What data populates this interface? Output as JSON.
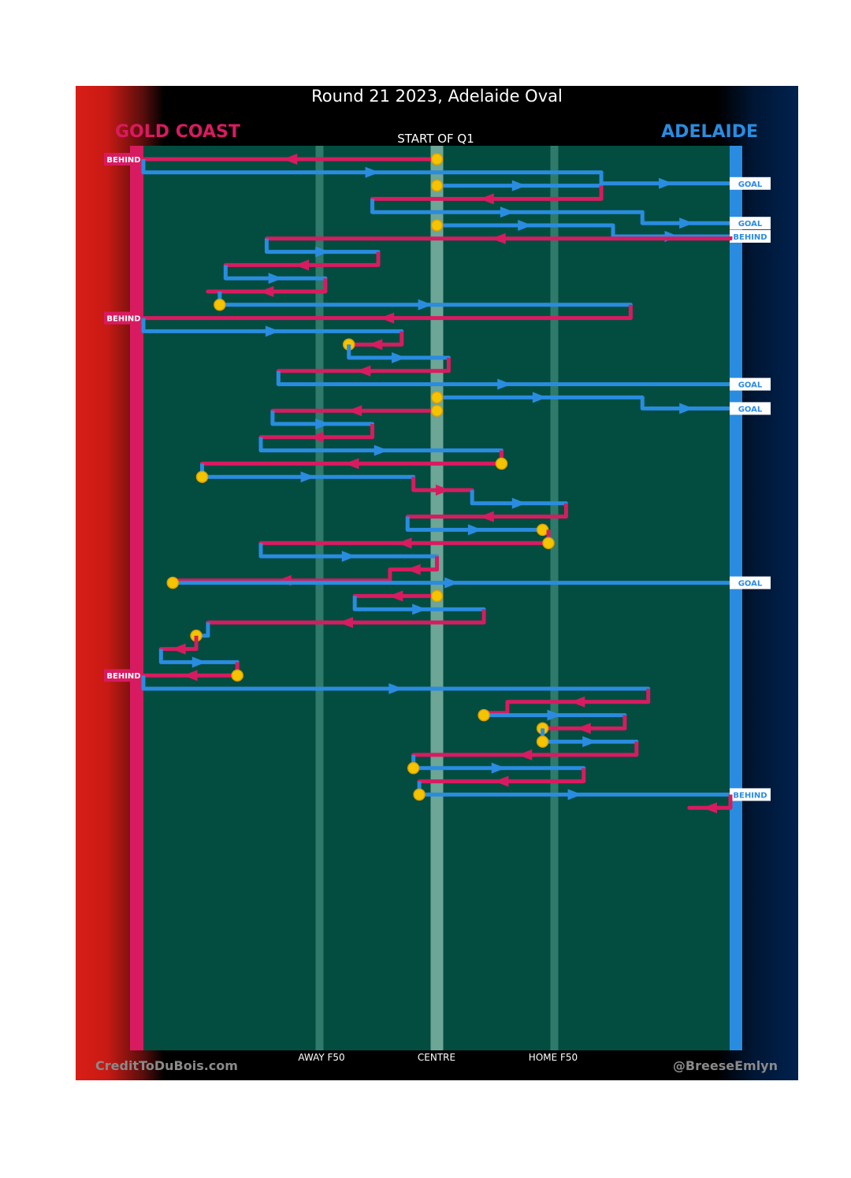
{
  "title": "Round 21 2023, Adelaide Oval",
  "teams": {
    "left": "GOLD COAST",
    "right": "ADELAIDE"
  },
  "start_label": "START OF Q1",
  "axis_labels": {
    "away": "AWAY F50",
    "centre": "CENTRE",
    "home": "HOME F50"
  },
  "footer": {
    "left": "CreditToDuBois.com",
    "right": "@BreeseEmlyn"
  },
  "colors": {
    "gold_coast": "#d81b60",
    "adelaide": "#2a8ce0",
    "field": "#024d40",
    "ball_marker": "#f5c400",
    "background_left": "#d81e16",
    "background_right": "#00224e"
  },
  "chart_data": {
    "type": "flow",
    "x_scale": "field position, 0 = Gold Coast goal line, 100 = Adelaide goal line, 50 = centre, 30 = away F50, 70 = home F50",
    "x_range": [
      0,
      100
    ],
    "chains": [
      {
        "team": "gold_coast",
        "start": 50,
        "start_marker": "ball",
        "segments": [
          [
            50,
            0
          ]
        ],
        "end": "BEHIND"
      },
      {
        "team": "adelaide",
        "start": 0,
        "segments": [
          [
            0,
            78
          ],
          [
            78,
            100
          ]
        ],
        "turn_team": "gold_coast",
        "end": "GOAL"
      },
      {
        "team": "adelaide",
        "start": 50,
        "start_marker": "ball",
        "segments": [
          [
            50,
            78
          ]
        ]
      },
      {
        "team": "gold_coast",
        "segments": [
          [
            78,
            39
          ]
        ]
      },
      {
        "team": "adelaide",
        "segments": [
          [
            39,
            85
          ],
          [
            85,
            100
          ]
        ],
        "end": "GOAL"
      },
      {
        "team": "adelaide",
        "start": 50,
        "start_marker": "ball",
        "segments": [
          [
            50,
            80
          ],
          [
            80,
            100
          ]
        ],
        "end": "BEHIND"
      },
      {
        "team": "gold_coast",
        "segments": [
          [
            100,
            21
          ]
        ]
      },
      {
        "team": "adelaide",
        "segments": [
          [
            21,
            40
          ]
        ]
      },
      {
        "team": "gold_coast",
        "segments": [
          [
            40,
            14
          ]
        ]
      },
      {
        "team": "adelaide",
        "segments": [
          [
            14,
            31
          ]
        ]
      },
      {
        "team": "gold_coast",
        "segments": [
          [
            31,
            11
          ]
        ]
      },
      {
        "team": "adelaide",
        "start_marker": "ball",
        "segments": [
          [
            13,
            83
          ]
        ]
      },
      {
        "team": "gold_coast",
        "segments": [
          [
            83,
            0
          ]
        ],
        "end": "BEHIND"
      },
      {
        "team": "adelaide",
        "segments": [
          [
            0,
            44
          ]
        ]
      },
      {
        "team": "gold_coast",
        "segments": [
          [
            44,
            35
          ]
        ],
        "end_marker": "ball"
      },
      {
        "team": "adelaide",
        "segments": [
          [
            35,
            52
          ]
        ]
      },
      {
        "team": "gold_coast",
        "segments": [
          [
            52,
            23
          ]
        ]
      },
      {
        "team": "adelaide",
        "segments": [
          [
            23,
            100
          ]
        ],
        "end": "GOAL"
      },
      {
        "team": "adelaide",
        "start": 50,
        "start_marker": "ball",
        "segments": [
          [
            50,
            85
          ],
          [
            85,
            100
          ]
        ],
        "end": "GOAL"
      },
      {
        "team": "gold_coast",
        "start": 50,
        "start_marker": "ball",
        "segments": [
          [
            50,
            22
          ]
        ]
      },
      {
        "team": "adelaide",
        "segments": [
          [
            22,
            39
          ]
        ]
      },
      {
        "team": "gold_coast",
        "segments": [
          [
            39,
            20
          ]
        ]
      },
      {
        "team": "adelaide",
        "segments": [
          [
            20,
            61
          ]
        ]
      },
      {
        "team": "gold_coast",
        "segments": [
          [
            61,
            10
          ]
        ],
        "start_marker": "ball"
      },
      {
        "team": "adelaide",
        "start_marker": "ball",
        "segments": [
          [
            10,
            46
          ]
        ]
      },
      {
        "team": "gold_coast",
        "segments": [
          [
            46,
            56
          ]
        ]
      },
      {
        "team": "adelaide",
        "segments": [
          [
            56,
            72
          ]
        ]
      },
      {
        "team": "gold_coast",
        "segments": [
          [
            72,
            45
          ]
        ]
      },
      {
        "team": "adelaide",
        "segments": [
          [
            45,
            68
          ]
        ],
        "end_marker": "ball"
      },
      {
        "team": "gold_coast",
        "start": 69,
        "start_marker": "ball",
        "segments": [
          [
            69,
            20
          ]
        ]
      },
      {
        "team": "adelaide",
        "segments": [
          [
            20,
            50
          ]
        ]
      },
      {
        "team": "gold_coast",
        "segments": [
          [
            50,
            42
          ],
          [
            42,
            6
          ]
        ]
      },
      {
        "team": "adelaide",
        "start_marker": "ball",
        "segments": [
          [
            5,
            100
          ]
        ],
        "end": "GOAL"
      },
      {
        "team": "gold_coast",
        "start": 50,
        "start_marker": "ball",
        "segments": [
          [
            50,
            36
          ]
        ]
      },
      {
        "team": "adelaide",
        "segments": [
          [
            36,
            58
          ]
        ]
      },
      {
        "team": "gold_coast",
        "segments": [
          [
            58,
            11
          ]
        ]
      },
      {
        "team": "adelaide",
        "segments": [
          [
            11,
            9
          ]
        ],
        "end_marker": "ball"
      },
      {
        "team": "gold_coast",
        "segments": [
          [
            9,
            3
          ]
        ]
      },
      {
        "team": "adelaide",
        "segments": [
          [
            3,
            16
          ]
        ]
      },
      {
        "team": "gold_coast",
        "start_marker": "ball",
        "segments": [
          [
            16,
            0
          ]
        ],
        "end": "BEHIND"
      },
      {
        "team": "adelaide",
        "segments": [
          [
            0,
            86
          ]
        ]
      },
      {
        "team": "gold_coast",
        "segments": [
          [
            86,
            62
          ],
          [
            62,
            58
          ]
        ]
      },
      {
        "team": "adelaide",
        "start_marker": "ball",
        "segments": [
          [
            58,
            82
          ]
        ]
      },
      {
        "team": "gold_coast",
        "segments": [
          [
            82,
            68
          ]
        ],
        "end_marker": "ball"
      },
      {
        "team": "adelaide",
        "start_marker": "ball",
        "segments": [
          [
            68,
            84
          ]
        ]
      },
      {
        "team": "gold_coast",
        "segments": [
          [
            84,
            46
          ]
        ]
      },
      {
        "team": "adelaide",
        "start_marker": "ball",
        "segments": [
          [
            46,
            75
          ]
        ]
      },
      {
        "team": "gold_coast",
        "segments": [
          [
            75,
            47
          ]
        ]
      },
      {
        "team": "adelaide",
        "start_marker": "ball",
        "segments": [
          [
            47,
            100
          ]
        ],
        "end": "BEHIND"
      },
      {
        "team": "gold_coast",
        "segments": [
          [
            100,
            93
          ]
        ]
      }
    ]
  }
}
